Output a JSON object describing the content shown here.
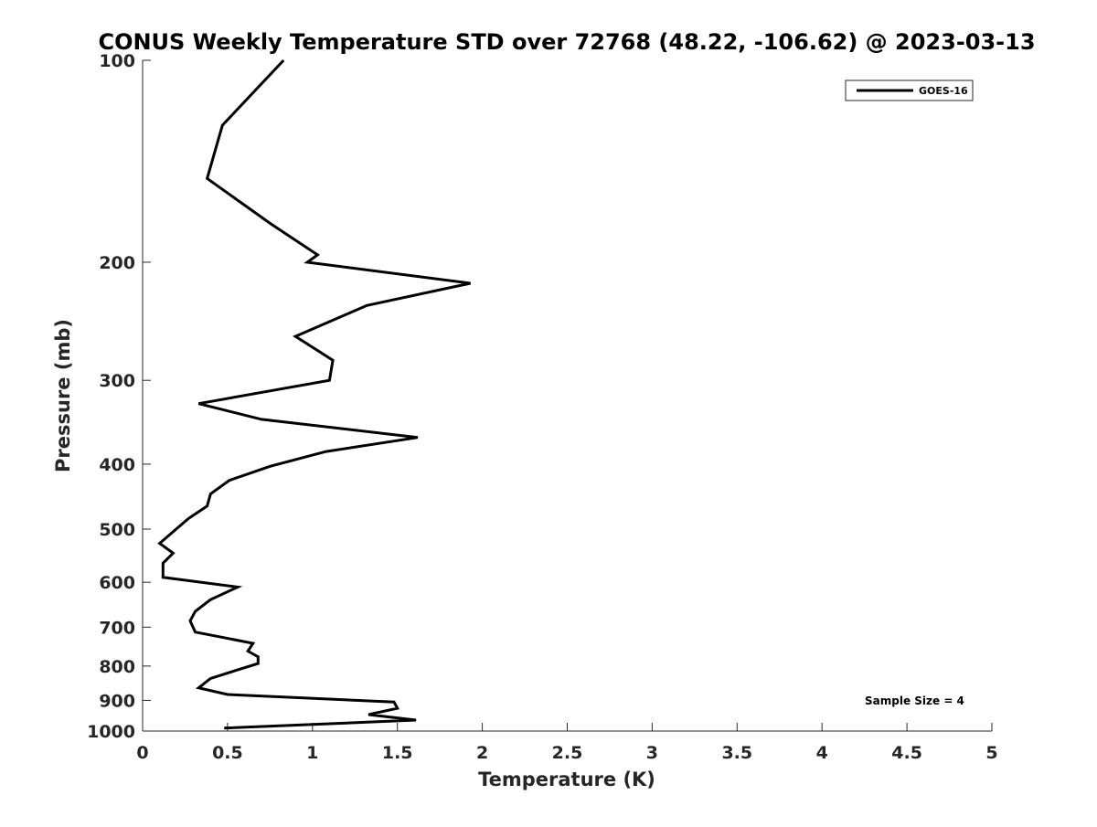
{
  "chart_data": {
    "type": "line",
    "title": "CONUS Weekly Temperature STD over 72768 (48.22, -106.62) @ 2023-03-13",
    "xlabel": "Temperature (K)",
    "ylabel": "Pressure (mb)",
    "xlim": [
      0,
      5
    ],
    "ylim": [
      1000,
      100
    ],
    "yscale": "log",
    "y_reversed": true,
    "grid": false,
    "x_ticks": [
      "0",
      "0.5",
      "1",
      "1.5",
      "2",
      "2.5",
      "3",
      "3.5",
      "4",
      "4.5",
      "5"
    ],
    "y_ticks": [
      "100",
      "200",
      "300",
      "400",
      "500",
      "600",
      "700",
      "800",
      "900",
      "1000"
    ],
    "legend": {
      "position": "top-right",
      "entries": [
        "GOES-16"
      ]
    },
    "annotation": "Sample Size = 4",
    "series": [
      {
        "name": "GOES-16",
        "color": "#000000",
        "x": [
          0.83,
          0.47,
          0.38,
          0.75,
          1.03,
          0.97,
          1.93,
          1.32,
          0.9,
          1.12,
          1.1,
          0.33,
          0.7,
          1.62,
          1.08,
          0.75,
          0.51,
          0.4,
          0.38,
          0.27,
          0.19,
          0.1,
          0.18,
          0.12,
          0.12,
          0.56,
          0.4,
          0.31,
          0.28,
          0.31,
          0.65,
          0.62,
          0.68,
          0.68,
          0.55,
          0.4,
          0.33,
          0.5,
          1.48,
          1.5,
          1.33,
          1.61,
          0.48
        ],
        "y": [
          100,
          125,
          150,
          175,
          195,
          200,
          215,
          232,
          258,
          280,
          300,
          325,
          343,
          365,
          383,
          403,
          423,
          443,
          462,
          482,
          502,
          525,
          543,
          562,
          590,
          610,
          637,
          663,
          685,
          712,
          740,
          760,
          775,
          793,
          812,
          835,
          862,
          882,
          905,
          925,
          945,
          963,
          990
        ]
      }
    ]
  }
}
